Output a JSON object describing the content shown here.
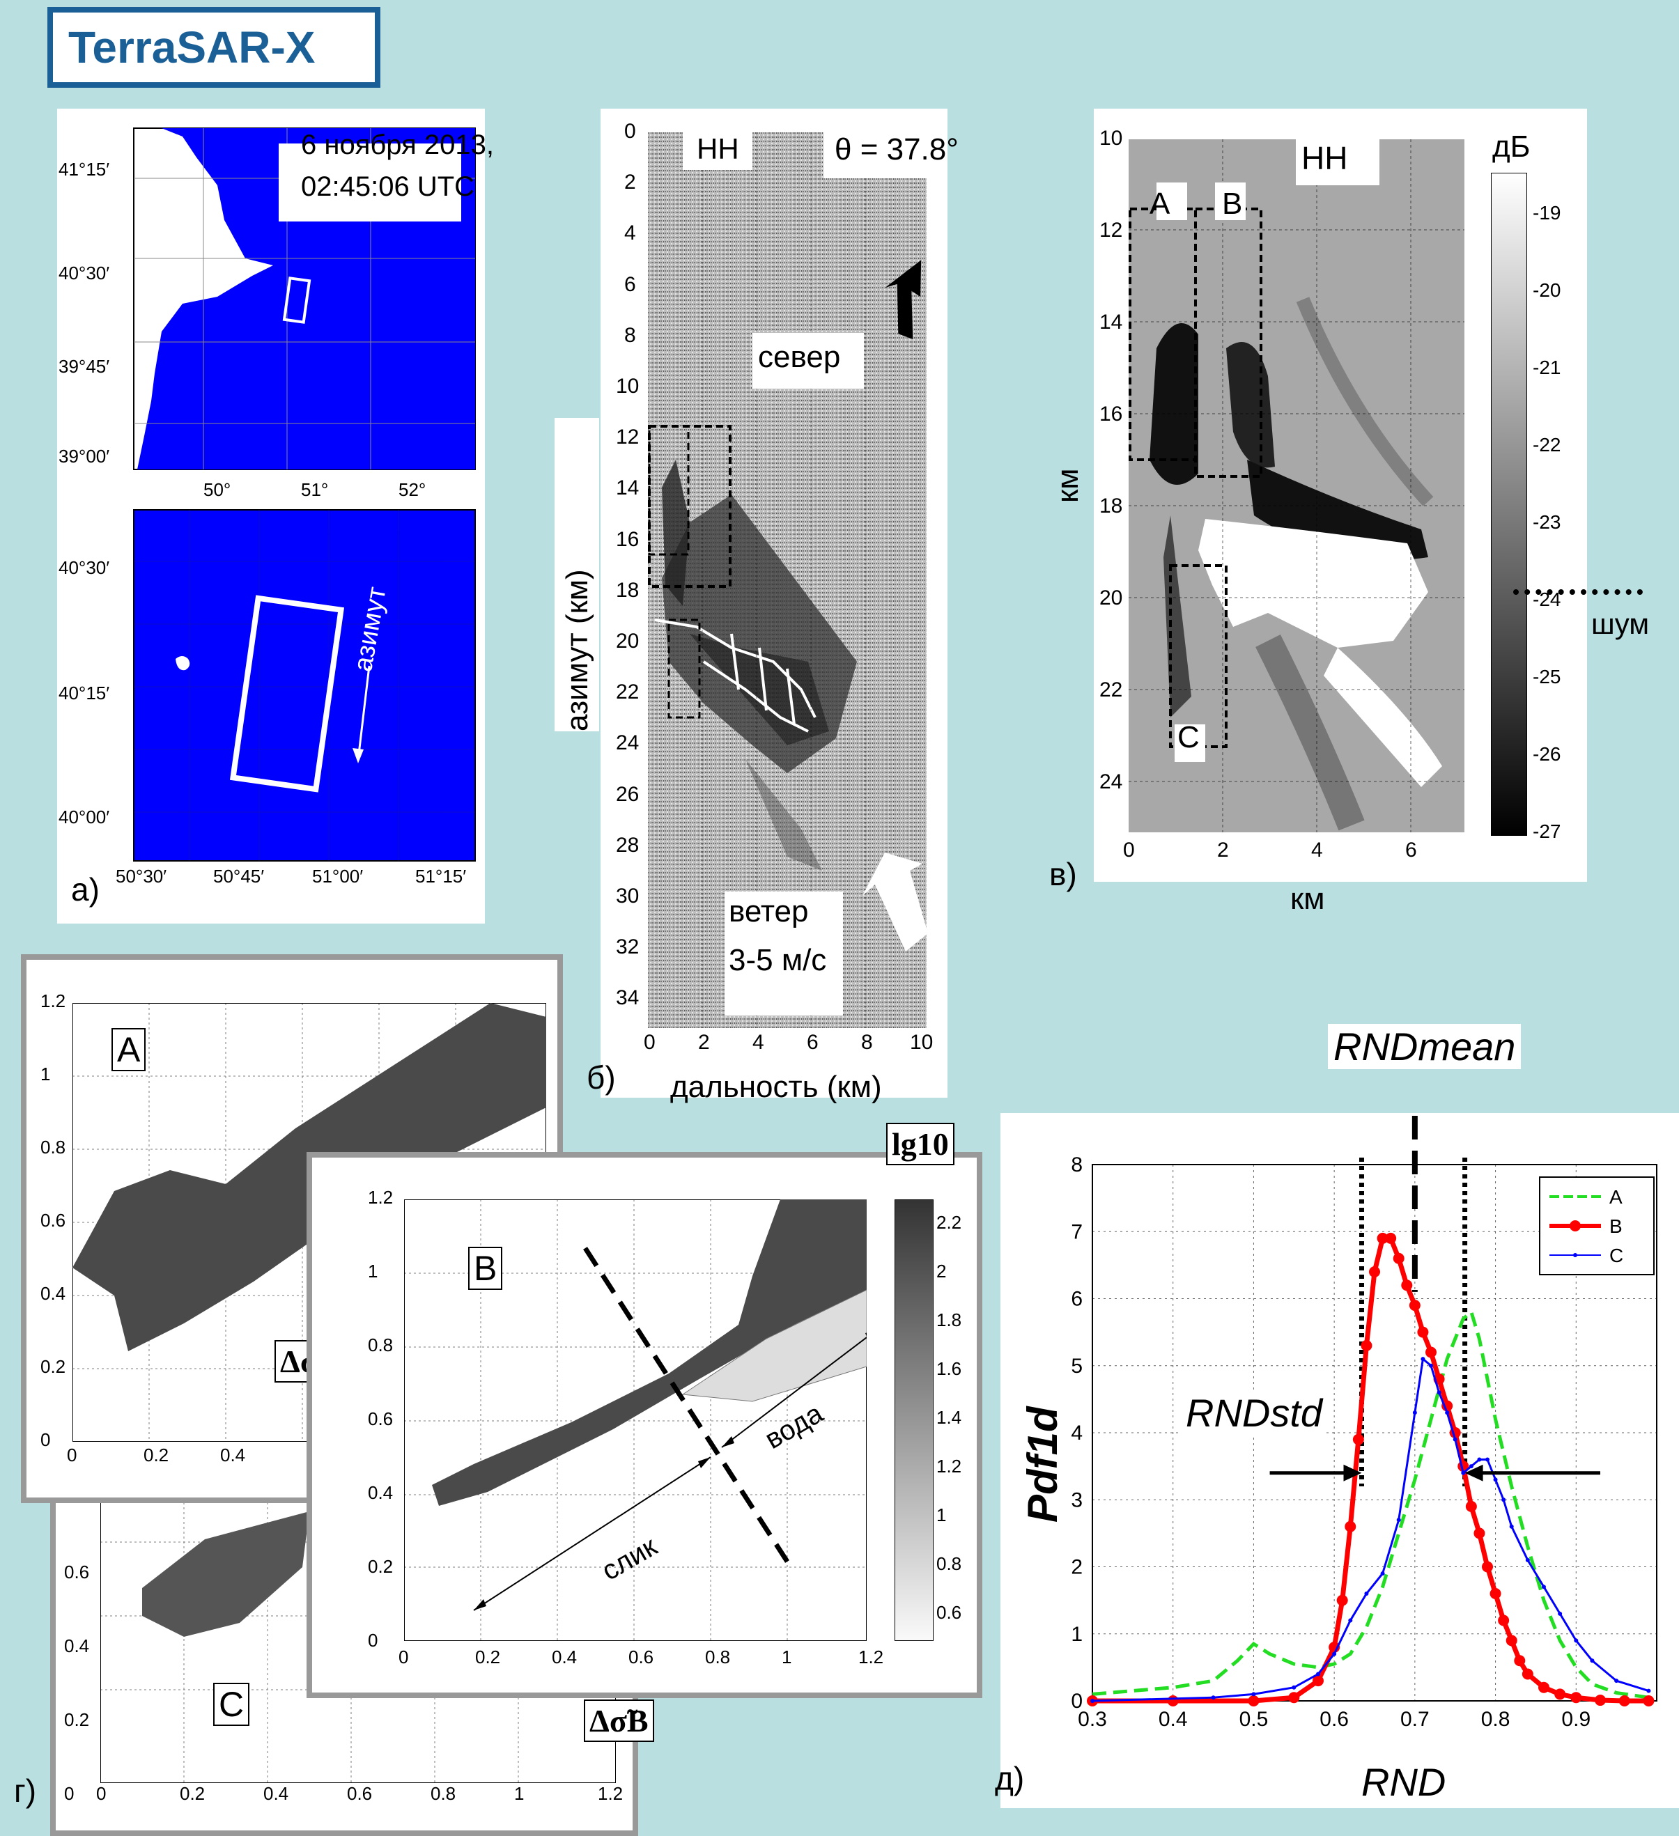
{
  "title": "TerraSAR-X",
  "panel_a": {
    "label": "а)",
    "date_line1": "6 ноября 2013,",
    "date_line2": "02:45:06 UTC",
    "top_lat_ticks": [
      "41°15′",
      "40°30′",
      "39°45′",
      "39°00′"
    ],
    "top_lon_ticks": [
      "50°",
      "51°",
      "52°"
    ],
    "bot_lat_ticks": [
      "40°30′",
      "40°15′",
      "40°00′"
    ],
    "bot_lon_ticks": [
      "50°30′",
      "50°45′",
      "51°00′",
      "51°15′"
    ],
    "azimuth_label": "азимут",
    "sea_color": "#0000ff"
  },
  "panel_b": {
    "label": "б)",
    "pol": "HH",
    "theta": "θ = 37.8°",
    "north": "север",
    "wind1": "ветер",
    "wind2": "3-5 м/с",
    "ylabel": "азимут (км)",
    "xlabel": "дальность (км)",
    "yticks": [
      "0",
      "2",
      "4",
      "6",
      "8",
      "10",
      "12",
      "14",
      "16",
      "18",
      "20",
      "22",
      "24",
      "26",
      "28",
      "30",
      "32",
      "34"
    ],
    "xticks": [
      "0",
      "2",
      "4",
      "6",
      "8",
      "10"
    ]
  },
  "panel_v": {
    "label": "в)",
    "pol": "HH",
    "ylabel": "км",
    "xlabel": "км",
    "yticks": [
      "10",
      "12",
      "14",
      "16",
      "18",
      "20",
      "22",
      "24"
    ],
    "xticks": [
      "0",
      "2",
      "4",
      "6"
    ],
    "box_labels": [
      "A",
      "B",
      "C"
    ],
    "colorbar_unit": "дБ",
    "colorbar_ticks": [
      "-19",
      "-20",
      "-21",
      "-22",
      "-23",
      "-24",
      "-25",
      "-26",
      "-27"
    ],
    "noise_label": "шум"
  },
  "panel_g": {
    "label": "г)",
    "A_label": "A",
    "B_label": "B",
    "C_label": "C",
    "xlabel_B": "Δσ̃B",
    "ylabel_n": "Δσ̃n",
    "A_yticks": [
      "0",
      "0.2",
      "0.4",
      "0.6",
      "0.8",
      "1",
      "1.2"
    ],
    "A_xticks": [
      "0",
      "0.2",
      "0.4"
    ],
    "B_yticks": [
      "0",
      "0.2",
      "0.4",
      "0.6",
      "0.8",
      "1",
      "1.2"
    ],
    "B_xticks": [
      "0",
      "0.2",
      "0.4",
      "0.6",
      "0.8",
      "1",
      "1.2"
    ],
    "C_yticks": [
      "0",
      "0.2",
      "0.4",
      "0.6"
    ],
    "C_xticks": [
      "0",
      "0.2",
      "0.4",
      "0.6",
      "0.8",
      "1",
      "1.2"
    ],
    "colorbar_title": "lg10",
    "colorbar_ticks": [
      "2.2",
      "2",
      "1.8",
      "1.6",
      "1.4",
      "1.2",
      "1",
      "0.8",
      "0.6"
    ],
    "slick": "слик",
    "water": "вода"
  },
  "panel_d": {
    "label": "д)",
    "rnd_mean": "RNDmean",
    "rnd_std": "RNDstd",
    "ylabel": "Pdf1d",
    "xlabel": "RND"
  },
  "chart_data": {
    "type": "line",
    "xlabel": "RND",
    "ylabel": "Pdf1d",
    "xlim": [
      0.3,
      1.0
    ],
    "ylim": [
      0,
      8
    ],
    "xticks": [
      0.3,
      0.4,
      0.5,
      0.6,
      0.7,
      0.8,
      0.9
    ],
    "yticks": [
      0,
      1,
      2,
      3,
      4,
      5,
      6,
      7,
      8
    ],
    "grid": true,
    "legend": "top-right",
    "series": [
      {
        "name": "A",
        "color": "#22dd22",
        "style": "dashed",
        "x": [
          0.3,
          0.35,
          0.4,
          0.45,
          0.48,
          0.5,
          0.52,
          0.55,
          0.58,
          0.6,
          0.62,
          0.64,
          0.66,
          0.68,
          0.7,
          0.72,
          0.74,
          0.76,
          0.77,
          0.78,
          0.8,
          0.82,
          0.84,
          0.86,
          0.88,
          0.9,
          0.92,
          0.95,
          0.99
        ],
        "y": [
          0.1,
          0.15,
          0.2,
          0.3,
          0.6,
          0.85,
          0.7,
          0.55,
          0.5,
          0.55,
          0.7,
          1.1,
          1.7,
          2.5,
          3.3,
          4.2,
          5.1,
          5.7,
          5.8,
          5.4,
          4.2,
          3.2,
          2.3,
          1.5,
          0.9,
          0.5,
          0.25,
          0.12,
          0.05
        ]
      },
      {
        "name": "B",
        "color": "#ff0000",
        "style": "solid-markers",
        "x": [
          0.3,
          0.4,
          0.5,
          0.55,
          0.58,
          0.6,
          0.61,
          0.62,
          0.63,
          0.64,
          0.65,
          0.66,
          0.67,
          0.68,
          0.69,
          0.7,
          0.71,
          0.72,
          0.73,
          0.74,
          0.75,
          0.76,
          0.77,
          0.78,
          0.79,
          0.8,
          0.81,
          0.82,
          0.83,
          0.84,
          0.86,
          0.88,
          0.9,
          0.93,
          0.96,
          0.99
        ],
        "y": [
          0,
          0,
          0,
          0.05,
          0.3,
          0.8,
          1.5,
          2.6,
          3.9,
          5.3,
          6.4,
          6.9,
          6.9,
          6.6,
          6.2,
          5.9,
          5.5,
          5.2,
          4.8,
          4.4,
          4.0,
          3.5,
          2.9,
          2.5,
          2.0,
          1.6,
          1.2,
          0.9,
          0.6,
          0.4,
          0.2,
          0.1,
          0.05,
          0.01,
          0,
          0
        ]
      },
      {
        "name": "C",
        "color": "#0000ff",
        "style": "solid-small-markers",
        "x": [
          0.3,
          0.45,
          0.5,
          0.55,
          0.58,
          0.6,
          0.62,
          0.64,
          0.66,
          0.68,
          0.7,
          0.71,
          0.72,
          0.73,
          0.74,
          0.75,
          0.76,
          0.77,
          0.78,
          0.79,
          0.8,
          0.81,
          0.82,
          0.84,
          0.86,
          0.88,
          0.9,
          0.92,
          0.95,
          0.99
        ],
        "y": [
          0,
          0.05,
          0.1,
          0.2,
          0.4,
          0.7,
          1.2,
          1.6,
          1.9,
          2.7,
          4.3,
          5.1,
          5.0,
          4.6,
          4.3,
          3.9,
          3.4,
          3.5,
          3.6,
          3.6,
          3.3,
          3.0,
          2.6,
          2.1,
          1.7,
          1.3,
          0.9,
          0.6,
          0.3,
          0.15
        ]
      }
    ],
    "annotations": [
      "RNDmean",
      "RNDstd"
    ]
  }
}
